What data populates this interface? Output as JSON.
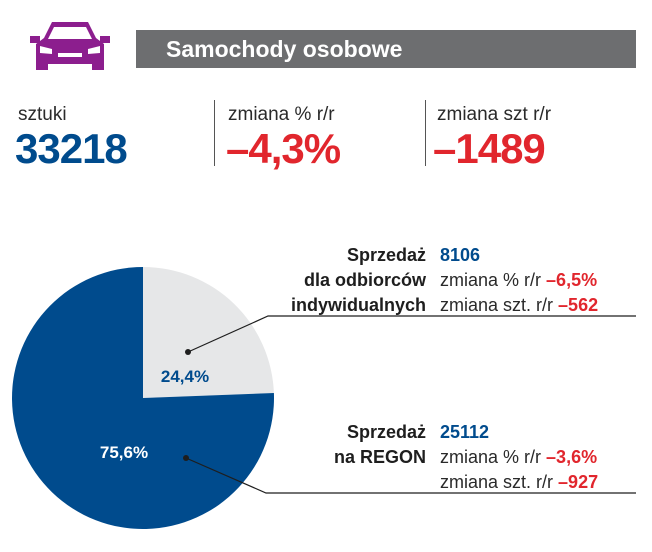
{
  "header": {
    "icon": "car-icon",
    "title": "Samochody osobowe",
    "icon_color": "#8c1e8e",
    "bar_color": "#6d6e70"
  },
  "stats": [
    {
      "label": "sztuki",
      "value": "33218",
      "color": "#004b8d"
    },
    {
      "label": "zmiana % r/r",
      "value": "–4,3%",
      "color": "#e1262d"
    },
    {
      "label": "zmiana szt r/r",
      "value": "–1489",
      "color": "#e1262d"
    }
  ],
  "segments": {
    "individual": {
      "title_lines": [
        "Sprzedaż",
        "dla odbiorców",
        "indywidualnych"
      ],
      "value": "8106",
      "pct_label": "zmiana % r/r",
      "pct_value": "–6,5%",
      "units_label": "zmiana szt. r/r",
      "units_value": "–562"
    },
    "regon": {
      "title_lines": [
        "Sprzedaż",
        "na REGON"
      ],
      "value": "25112",
      "pct_label": "zmiana % r/r",
      "pct_value": "–3,6%",
      "units_label": "zmiana szt. r/r",
      "units_value": "–927"
    }
  },
  "colors": {
    "blue": "#004b8d",
    "red": "#e1262d",
    "grey_slice": "#e6e7e8"
  },
  "chart_data": {
    "type": "pie",
    "title": "Samochody osobowe",
    "categories": [
      "Sprzedaż dla odbiorców indywidualnych",
      "Sprzedaż na REGON"
    ],
    "values": [
      24.4,
      75.6
    ],
    "units": [
      8106,
      25112
    ],
    "labels": [
      "24,4%",
      "75,6%"
    ],
    "colors": [
      "#e6e7e8",
      "#004b8d"
    ],
    "label_colors": [
      "#004b8d",
      "#ffffff"
    ]
  }
}
